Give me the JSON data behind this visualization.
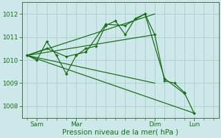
{
  "xlabel": "Pression niveau de la mer( hPa )",
  "bg_color": "#cce8e8",
  "grid_color": "#aacccc",
  "line_color": "#1a6b1a",
  "ylim": [
    1007.5,
    1012.5
  ],
  "yticks": [
    1008,
    1009,
    1010,
    1011,
    1012
  ],
  "xlim": [
    0,
    20
  ],
  "line1_x": [
    0.5,
    1.5,
    2.5,
    3.5,
    4.5,
    5.5,
    6.5,
    7.5,
    8.5,
    9.5,
    10.5,
    11.5,
    12.5,
    13.5,
    14.5,
    15.5,
    16.5,
    17.5
  ],
  "line1_y": [
    1010.2,
    1010.0,
    1010.8,
    1010.2,
    1009.4,
    1010.2,
    1010.5,
    1010.6,
    1011.5,
    1011.7,
    1011.1,
    1011.8,
    1012.0,
    1011.1,
    1009.1,
    1009.0,
    1008.6,
    1007.7
  ],
  "line2_x": [
    0.5,
    2.5,
    4.5,
    6.5,
    8.5,
    10.5,
    12.5,
    14.5,
    16.5
  ],
  "line2_y": [
    1010.2,
    1010.5,
    1010.15,
    1010.35,
    1011.55,
    1011.5,
    1012.0,
    1009.2,
    1008.55
  ],
  "trend_lines": [
    {
      "x": [
        0.5,
        13.5
      ],
      "y": [
        1010.2,
        1011.1
      ]
    },
    {
      "x": [
        0.5,
        13.5
      ],
      "y": [
        1010.2,
        1012.0
      ]
    },
    {
      "x": [
        0.5,
        13.5
      ],
      "y": [
        1010.2,
        1009.0
      ]
    },
    {
      "x": [
        0.5,
        17.5
      ],
      "y": [
        1010.2,
        1007.7
      ]
    }
  ],
  "xtick_positions": [
    1.5,
    5.5,
    13.5,
    17.5
  ],
  "xtick_labels": [
    "Sam",
    "Mar",
    "Dim",
    "Lun"
  ],
  "minor_xtick_positions": [
    0.5,
    1.5,
    2.5,
    3.5,
    4.5,
    5.5,
    6.5,
    7.5,
    8.5,
    9.5,
    10.5,
    11.5,
    12.5,
    13.5,
    14.5,
    15.5,
    16.5,
    17.5,
    18.5,
    19.5
  ]
}
